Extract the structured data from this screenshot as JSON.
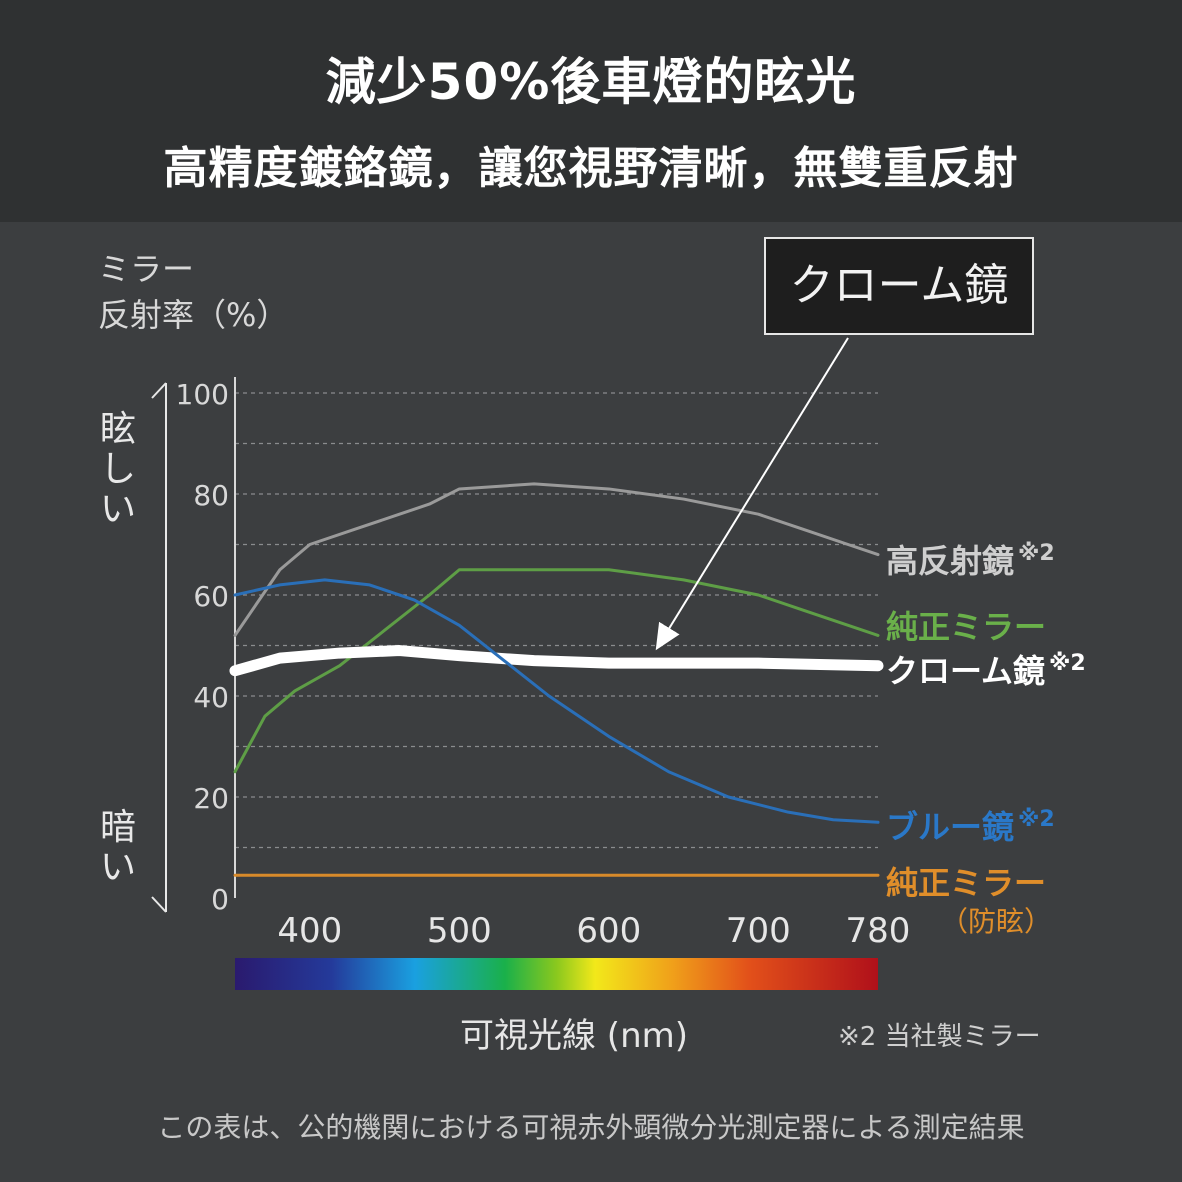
{
  "header": {
    "title": "減少50%後車燈的眩光",
    "subtitle": "高精度鍍鉻鏡，讓您視野清晰，無雙重反射"
  },
  "y_axis": {
    "label_line1": "ミラー",
    "label_line2": "反射率（%）",
    "top_text": "眩しい",
    "bottom_text": "暗い"
  },
  "callout": "クローム鏡",
  "series_labels": {
    "high": "高反射鏡",
    "genuine": "純正ミラー",
    "chrome": "クローム鏡",
    "blue": "ブルー鏡",
    "antiglare": "純正ミラー",
    "antiglare_sub": "（防眩）",
    "mark": "※2"
  },
  "x_axis_title": "可視光線 (nm)",
  "note": "※2 当社製ミラー",
  "footer": "この表は、公的機関における可視赤外顕微分光測定器による測定結果",
  "chart_data": {
    "type": "line",
    "xlabel": "可視光線 (nm)",
    "ylabel": "反射率（%）",
    "xlim": [
      350,
      780
    ],
    "ylim": [
      0,
      100
    ],
    "x_ticks": [
      400,
      500,
      600,
      700,
      780
    ],
    "y_ticks": [
      0,
      20,
      40,
      60,
      80,
      100
    ],
    "grid": true,
    "series": [
      {
        "name": "高反射鏡",
        "color": "#9a9a9a",
        "width": 3,
        "x": [
          350,
          380,
          400,
          430,
          460,
          480,
          500,
          550,
          600,
          650,
          700,
          730,
          760,
          780
        ],
        "y": [
          52,
          65,
          70,
          73,
          76,
          78,
          81,
          82,
          81,
          79,
          76,
          73,
          70,
          68
        ]
      },
      {
        "name": "純正ミラー",
        "color": "#5e9e46",
        "width": 3,
        "x": [
          350,
          370,
          390,
          420,
          450,
          480,
          500,
          550,
          600,
          650,
          700,
          730,
          760,
          780
        ],
        "y": [
          25,
          36,
          41,
          46,
          53,
          60,
          65,
          65,
          65,
          63,
          60,
          57,
          54,
          52
        ]
      },
      {
        "name": "クローム鏡",
        "color": "#ffffff",
        "width": 11,
        "x": [
          350,
          380,
          420,
          460,
          500,
          550,
          600,
          650,
          700,
          780
        ],
        "y": [
          45,
          47.5,
          48.5,
          49,
          48,
          47,
          46.5,
          46.5,
          46.5,
          46
        ]
      },
      {
        "name": "ブルー鏡",
        "color": "#2a6fb8",
        "width": 3,
        "x": [
          350,
          380,
          410,
          440,
          470,
          500,
          530,
          560,
          600,
          640,
          680,
          720,
          750,
          780
        ],
        "y": [
          60,
          62,
          63,
          62,
          59,
          54,
          47,
          40,
          32,
          25,
          20,
          17,
          15.5,
          15
        ]
      },
      {
        "name": "純正ミラー（防眩）",
        "color": "#d88a2a",
        "width": 3,
        "x": [
          350,
          780
        ],
        "y": [
          4.5,
          4.5
        ]
      }
    ]
  }
}
